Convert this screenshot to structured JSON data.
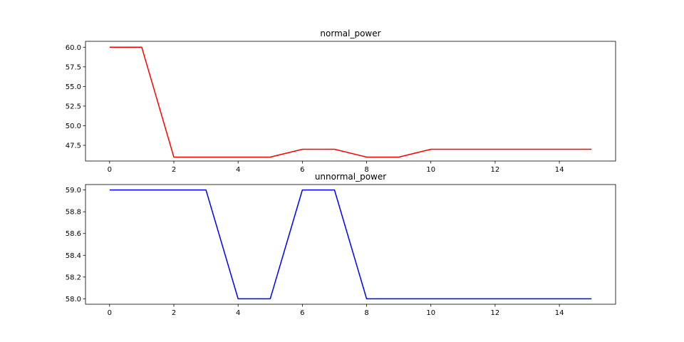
{
  "chart_data": [
    {
      "type": "line",
      "title": "normal_power",
      "xlabel": "",
      "ylabel": "",
      "xlim": [
        -0.75,
        15.75
      ],
      "ylim": [
        45.5,
        60.75
      ],
      "xticks": [
        0,
        2,
        4,
        6,
        8,
        10,
        12,
        14
      ],
      "xtick_labels": [
        "0",
        "2",
        "4",
        "6",
        "8",
        "10",
        "12",
        "14"
      ],
      "yticks": [
        47.5,
        50.0,
        52.5,
        55.0,
        57.5,
        60.0
      ],
      "ytick_labels": [
        "47.5",
        "50.0",
        "52.5",
        "55.0",
        "57.5",
        "60.0"
      ],
      "grid": false,
      "color": "#ff0000",
      "x": [
        0,
        1,
        2,
        3,
        4,
        5,
        6,
        7,
        8,
        9,
        10,
        11,
        12,
        13,
        14,
        15
      ],
      "y": [
        60,
        60,
        46,
        46,
        46,
        46,
        47,
        47,
        46,
        46,
        47,
        47,
        47,
        47,
        47,
        47
      ]
    },
    {
      "type": "line",
      "title": "unnormal_power",
      "xlabel": "",
      "ylabel": "",
      "xlim": [
        -0.75,
        15.75
      ],
      "ylim": [
        57.95,
        59.05
      ],
      "xticks": [
        0,
        2,
        4,
        6,
        8,
        10,
        12,
        14
      ],
      "xtick_labels": [
        "0",
        "2",
        "4",
        "6",
        "8",
        "10",
        "12",
        "14"
      ],
      "yticks": [
        58.0,
        58.2,
        58.4,
        58.6,
        58.8,
        59.0
      ],
      "ytick_labels": [
        "58.0",
        "58.2",
        "58.4",
        "58.6",
        "58.8",
        "59.0"
      ],
      "grid": false,
      "color": "#0000ff",
      "x": [
        0,
        1,
        2,
        3,
        4,
        5,
        6,
        7,
        8,
        9,
        10,
        11,
        12,
        13,
        14,
        15
      ],
      "y": [
        59,
        59,
        59,
        59,
        58,
        58,
        59,
        59,
        58,
        58,
        58,
        58,
        58,
        58,
        58,
        58
      ]
    }
  ]
}
